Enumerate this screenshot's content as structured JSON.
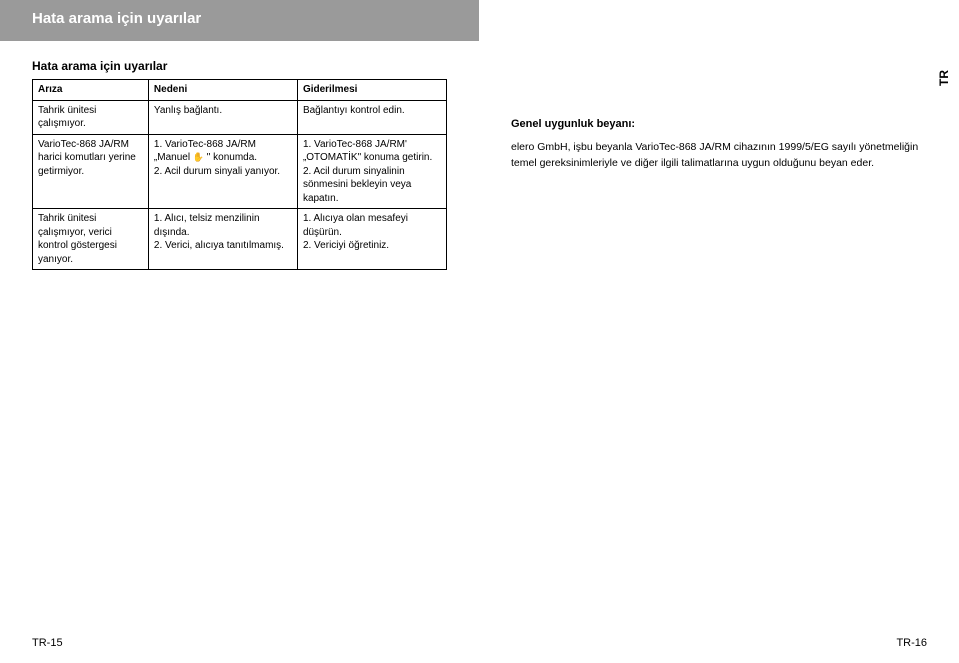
{
  "header": {
    "title": "Hata arama için uyarılar"
  },
  "sideTab": "TR",
  "section": {
    "subheading": "Hata arama için uyarılar"
  },
  "table": {
    "headers": {
      "c1": "Arıza",
      "c2": "Nedeni",
      "c3": "Giderilmesi"
    },
    "rows": [
      {
        "c1": "Tahrik ünitesi çalışmıyor.",
        "c2": "Yanlış bağlantı.",
        "c3": "Bağlantıyı kontrol edin."
      },
      {
        "c1": "VarioTec-868 JA/RM harici komutları yerine getirmiyor.",
        "c2_pre": "1. VarioTec-868 JA/RM „Manuel ",
        "c2_post": " \" konumda.\n2. Acil durum sinyali yanıyor.",
        "c3": "1. VarioTec-868 JA/RM' „OTOMATİK\" konuma getirin.\n2. Acil durum sinyalinin sönmesini bekleyin veya kapatın."
      },
      {
        "c1": "Tahrik ünitesi çalışmıyor, verici kontrol göstergesi yanıyor.",
        "c2": "1. Alıcı, telsiz menzilinin dışında.\n2. Verici, alıcıya tanıtılmamış.",
        "c3": "1. Alıcıya olan mesafeyi düşürün.\n2. Vericiyi öğretiniz."
      }
    ]
  },
  "declaration": {
    "heading": "Genel uygunluk beyanı:",
    "body": "elero GmbH, işbu beyanla VarioTec-868 JA/RM cihazının 1999/5/EG sayılı yönetmeliğin temel gereksinimleriyle ve diğer ilgili talimatlarına uygun olduğunu beyan eder."
  },
  "footers": {
    "left": "TR-15",
    "right": "TR-16"
  },
  "colors": {
    "headerBg": "#9a9a9a",
    "headerText": "#ffffff",
    "border": "#000000",
    "pageBg": "#ffffff"
  }
}
